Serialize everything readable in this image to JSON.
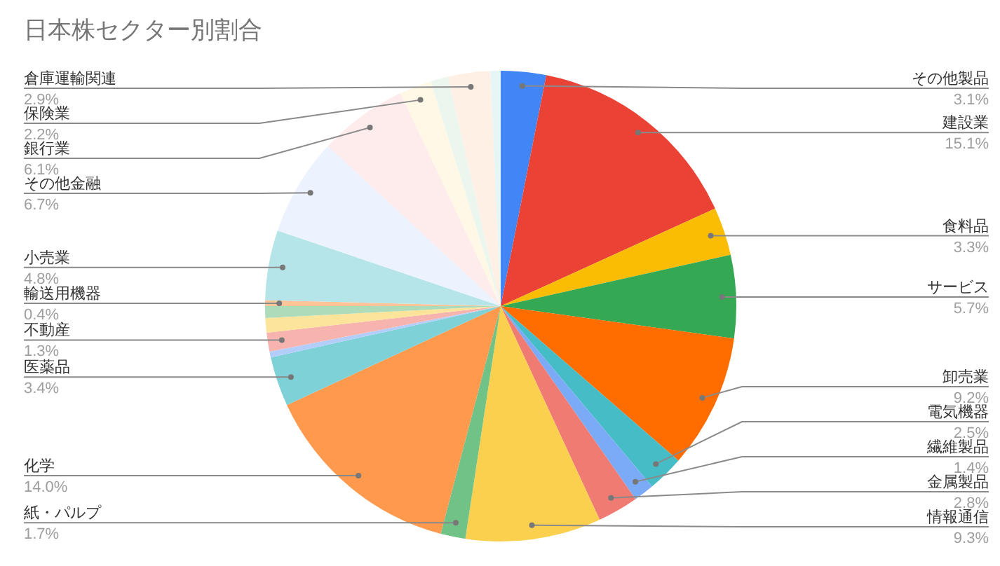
{
  "chart_data": {
    "type": "pie",
    "title": "日本株セクター別割合",
    "categories": [
      "その他製品",
      "建設業",
      "食料品",
      "サービス",
      "卸売業",
      "電気機器",
      "繊維製品",
      "金属製品",
      "情報通信",
      "紙・パルプ",
      "化学",
      "医薬品",
      null,
      "不動産",
      null,
      null,
      "輸送用機器",
      "小売業",
      "その他金融",
      "銀行業",
      "保険業",
      null,
      "倉庫運輸関連",
      null
    ],
    "values": [
      3.1,
      15.1,
      3.3,
      5.7,
      9.2,
      2.5,
      1.4,
      2.8,
      9.3,
      1.7,
      14.0,
      3.4,
      0.4,
      1.3,
      1.0,
      0.8,
      0.4,
      4.8,
      6.7,
      6.1,
      2.2,
      1.2,
      2.9,
      0.7
    ],
    "value_labels": [
      "3.1%",
      "15.1%",
      "3.3%",
      "5.7%",
      "9.2%",
      "2.5%",
      "1.4%",
      "2.8%",
      "9.3%",
      "1.7%",
      "14.0%",
      "3.4%",
      null,
      "1.3%",
      null,
      null,
      "0.4%",
      "4.8%",
      "6.7%",
      "6.1%",
      "2.2%",
      null,
      "2.9%",
      null
    ],
    "colors": [
      "#4285f4",
      "#ea4335",
      "#fbbc04",
      "#34a853",
      "#ff6d01",
      "#46bdc6",
      "#7baaf7",
      "#f07b72",
      "#fcd04f",
      "#71c287",
      "#ff994d",
      "#7ed1d7",
      "#b3cefb",
      "#f7b4ae",
      "#fde49b",
      "#aedcba",
      "#ffc599",
      "#b5e5e8",
      "#ecf3fe",
      "#fdeceb",
      "#fff8e6",
      "#ebf6ee",
      "#fff0e6",
      "#e6f6f7"
    ]
  }
}
